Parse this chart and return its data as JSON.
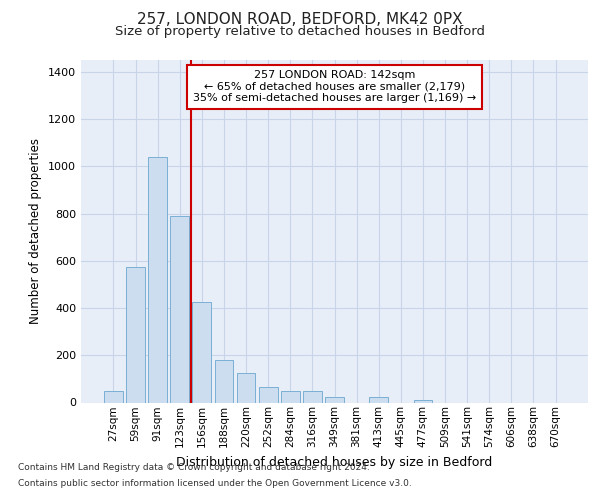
{
  "title1": "257, LONDON ROAD, BEDFORD, MK42 0PX",
  "title2": "Size of property relative to detached houses in Bedford",
  "xlabel": "Distribution of detached houses by size in Bedford",
  "ylabel": "Number of detached properties",
  "categories": [
    "27sqm",
    "59sqm",
    "91sqm",
    "123sqm",
    "156sqm",
    "188sqm",
    "220sqm",
    "252sqm",
    "284sqm",
    "316sqm",
    "349sqm",
    "381sqm",
    "413sqm",
    "445sqm",
    "477sqm",
    "509sqm",
    "541sqm",
    "574sqm",
    "606sqm",
    "638sqm",
    "670sqm"
  ],
  "values": [
    47,
    575,
    1040,
    790,
    425,
    180,
    125,
    65,
    50,
    47,
    22,
    0,
    22,
    0,
    12,
    0,
    0,
    0,
    0,
    0,
    0
  ],
  "bar_color": "#ccddf0",
  "bar_edge_color": "#7aafd4",
  "vline_x": 3.5,
  "vline_color": "#cc0000",
  "annotation_line1": "257 LONDON ROAD: 142sqm",
  "annotation_line2": "← 65% of detached houses are smaller (2,179)",
  "annotation_line3": "35% of semi-detached houses are larger (1,169) →",
  "annotation_box_facecolor": "#ffffff",
  "annotation_box_edgecolor": "#cc0000",
  "ylim": [
    0,
    1450
  ],
  "yticks": [
    0,
    200,
    400,
    600,
    800,
    1000,
    1200,
    1400
  ],
  "footnote1": "Contains HM Land Registry data © Crown copyright and database right 2024.",
  "footnote2": "Contains public sector information licensed under the Open Government Licence v3.0.",
  "plot_bg_color": "#e8eef8",
  "grid_color": "#c8d4e8",
  "title1_fontsize": 11,
  "title2_fontsize": 9.5
}
